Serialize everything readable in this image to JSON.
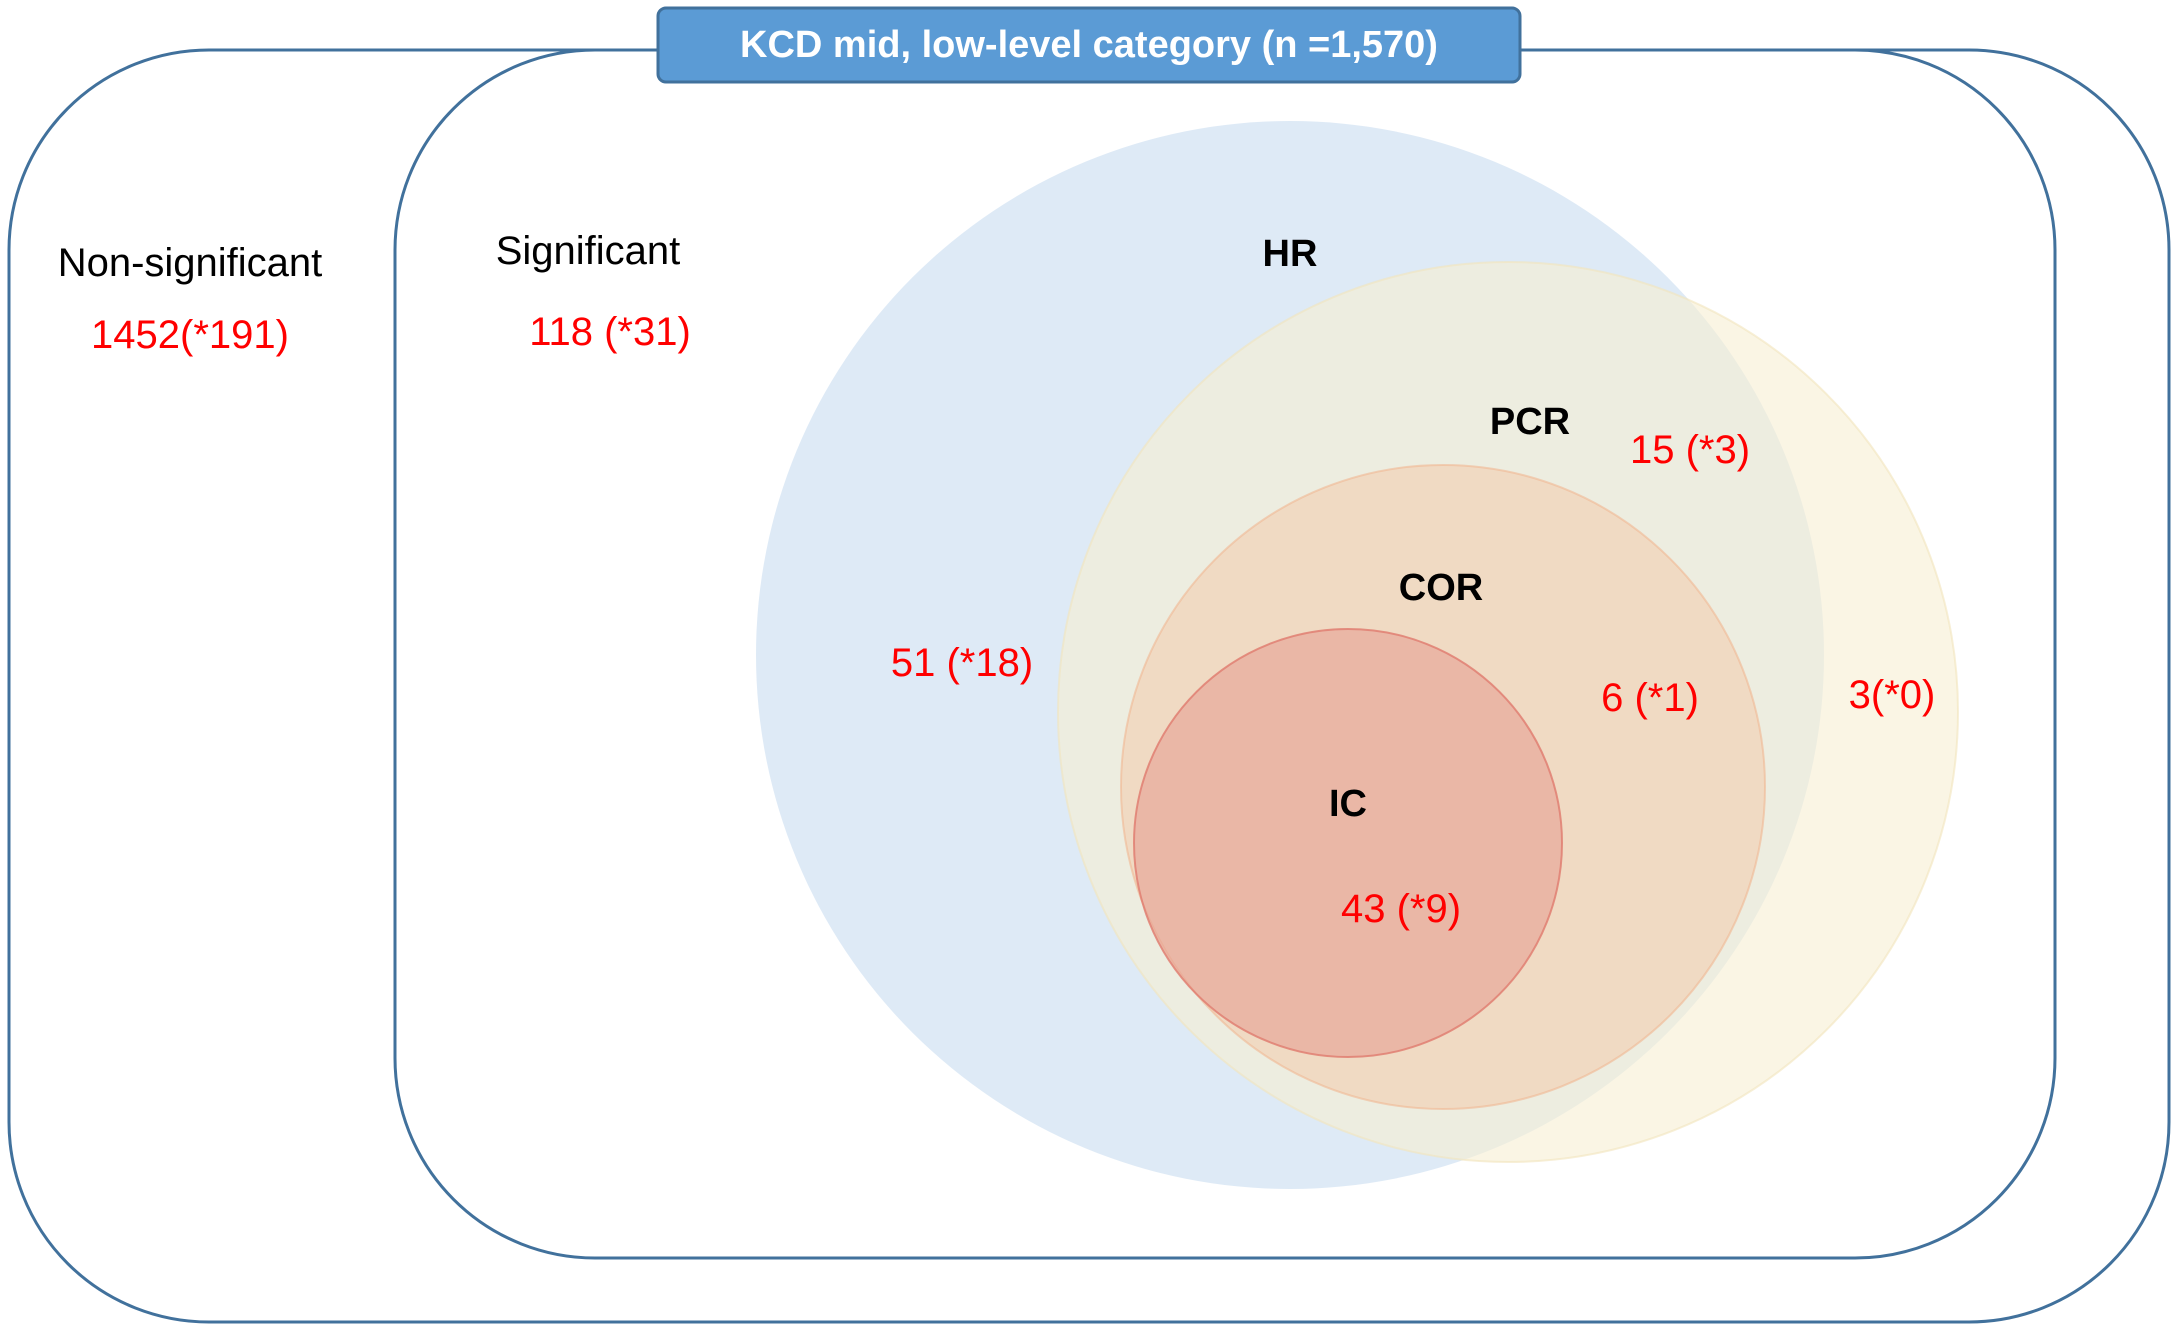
{
  "title": "KCD mid, low-level category (n =1,570)",
  "colors": {
    "frame_stroke": "#41719c",
    "title_fill": "#5b9bd5",
    "count_text": "#ff0000",
    "hr_fill": "#dce9f6",
    "pcr_fill": "#f6eed2",
    "cor_fill": "#f3c3a0",
    "ic_fill": "#e59b8e"
  },
  "outer_group": {
    "label": "Non-significant",
    "count": "1452(*191)"
  },
  "inner_group": {
    "label": "Significant",
    "count": "118 (*31)"
  },
  "sets": [
    {
      "label": "HR",
      "count": "51 (*18)"
    },
    {
      "label": "PCR",
      "count": "15 (*3)"
    },
    {
      "label": "COR",
      "count": "6 (*1)"
    },
    {
      "label": "IC",
      "count": "43 (*9)"
    }
  ],
  "outside_count": "3(*0)"
}
